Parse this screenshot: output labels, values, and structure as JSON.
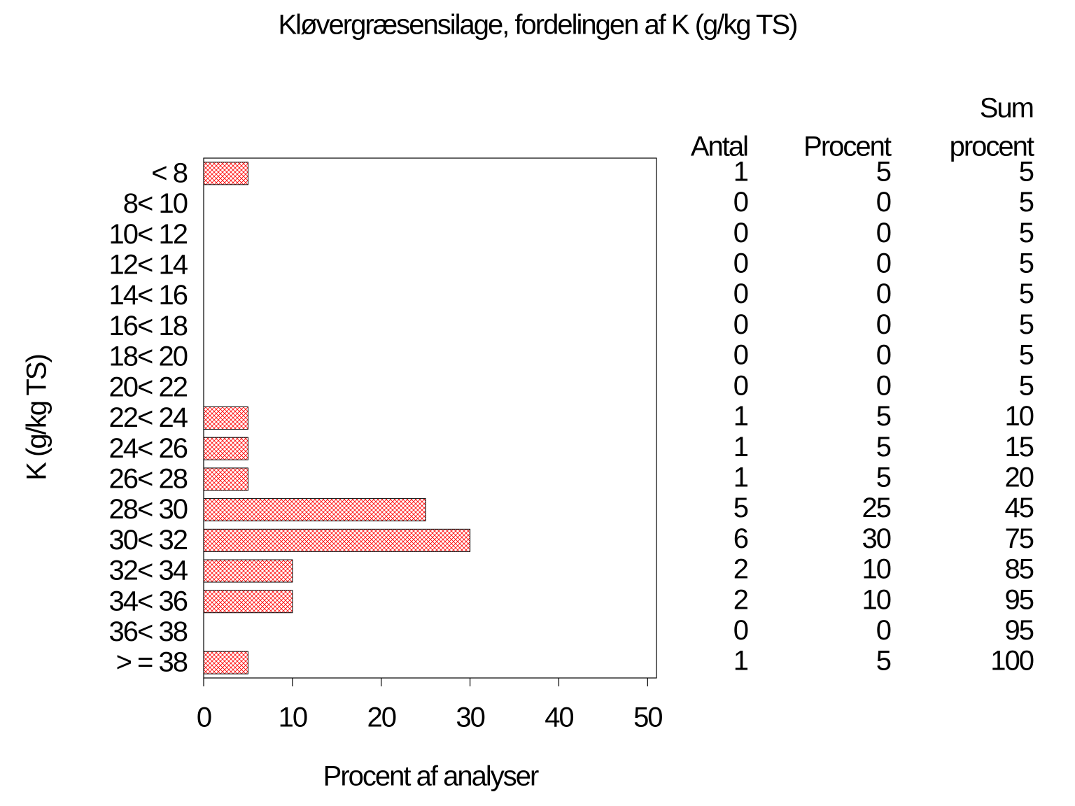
{
  "chart_data": {
    "type": "bar",
    "orientation": "horizontal",
    "title": "Kløvergræsensilage,  fordelingen  af  K  (g/kg  TS)",
    "x_label": "Procent  af  analyser",
    "y_label": "K  (g/kg  TS)",
    "categories": [
      "< 8",
      "8< 10",
      "10< 12",
      "12< 14",
      "14< 16",
      "16< 18",
      "18< 20",
      "20< 22",
      "22< 24",
      "24< 26",
      "26< 28",
      "28< 30",
      "30< 32",
      "32< 34",
      "34< 36",
      "36< 38",
      "> = 38"
    ],
    "values": [
      5,
      0,
      0,
      0,
      0,
      0,
      0,
      0,
      5,
      5,
      5,
      25,
      30,
      10,
      10,
      0,
      5
    ],
    "color": "#ff0000",
    "xlim": [
      0,
      51
    ],
    "xticks": [
      0,
      10,
      20,
      30,
      40,
      50
    ],
    "table": {
      "count_header": "Antal",
      "counts": [
        1,
        0,
        0,
        0,
        0,
        0,
        0,
        0,
        1,
        1,
        1,
        5,
        6,
        2,
        2,
        0,
        1
      ],
      "percent_header": "Procent",
      "cumulative_header": [
        "Sum",
        "procent"
      ],
      "cumulative": [
        5,
        5,
        5,
        5,
        5,
        5,
        5,
        5,
        10,
        15,
        20,
        45,
        75,
        85,
        95,
        95,
        100
      ]
    }
  }
}
